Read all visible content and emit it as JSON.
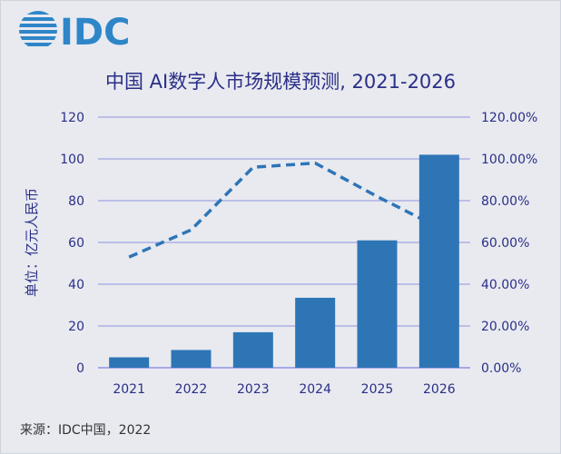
{
  "header": {
    "logo_text": "IDC",
    "title": "中国 AI数字人市场规模预测, 2021-2026"
  },
  "footer": {
    "source": "来源：IDC中国，2022"
  },
  "colors": {
    "background": "#e8eaf0",
    "bar": "#2e75b6",
    "line": "#2e75b6",
    "gridline": "#8f93e0",
    "title": "#2b2f86",
    "axis_text": "#2b2f86",
    "logo": "#2e86c8"
  },
  "chart_data": {
    "type": "bar",
    "title": "中国 AI数字人市场规模预测, 2021-2026",
    "categories": [
      "2021",
      "2022",
      "2023",
      "2024",
      "2025",
      "2026"
    ],
    "series": [
      {
        "type": "bar",
        "axis": "left",
        "values": [
          5,
          8.5,
          17,
          33.5,
          61,
          102
        ]
      },
      {
        "type": "line",
        "style": "dashed",
        "axis": "right",
        "values": [
          0.53,
          0.66,
          0.96,
          0.98,
          0.82,
          0.67
        ]
      }
    ],
    "ylabel": "单位：亿元人民币",
    "ylim": [
      0,
      120
    ],
    "yticks": [
      "0",
      "20",
      "40",
      "60",
      "80",
      "100",
      "120"
    ],
    "y2lim": [
      0,
      1.2
    ],
    "y2ticks": [
      "0.00%",
      "20.00%",
      "40.00%",
      "60.00%",
      "80.00%",
      "100.00%",
      "120.00%"
    ],
    "grid": true,
    "legend": "none"
  }
}
